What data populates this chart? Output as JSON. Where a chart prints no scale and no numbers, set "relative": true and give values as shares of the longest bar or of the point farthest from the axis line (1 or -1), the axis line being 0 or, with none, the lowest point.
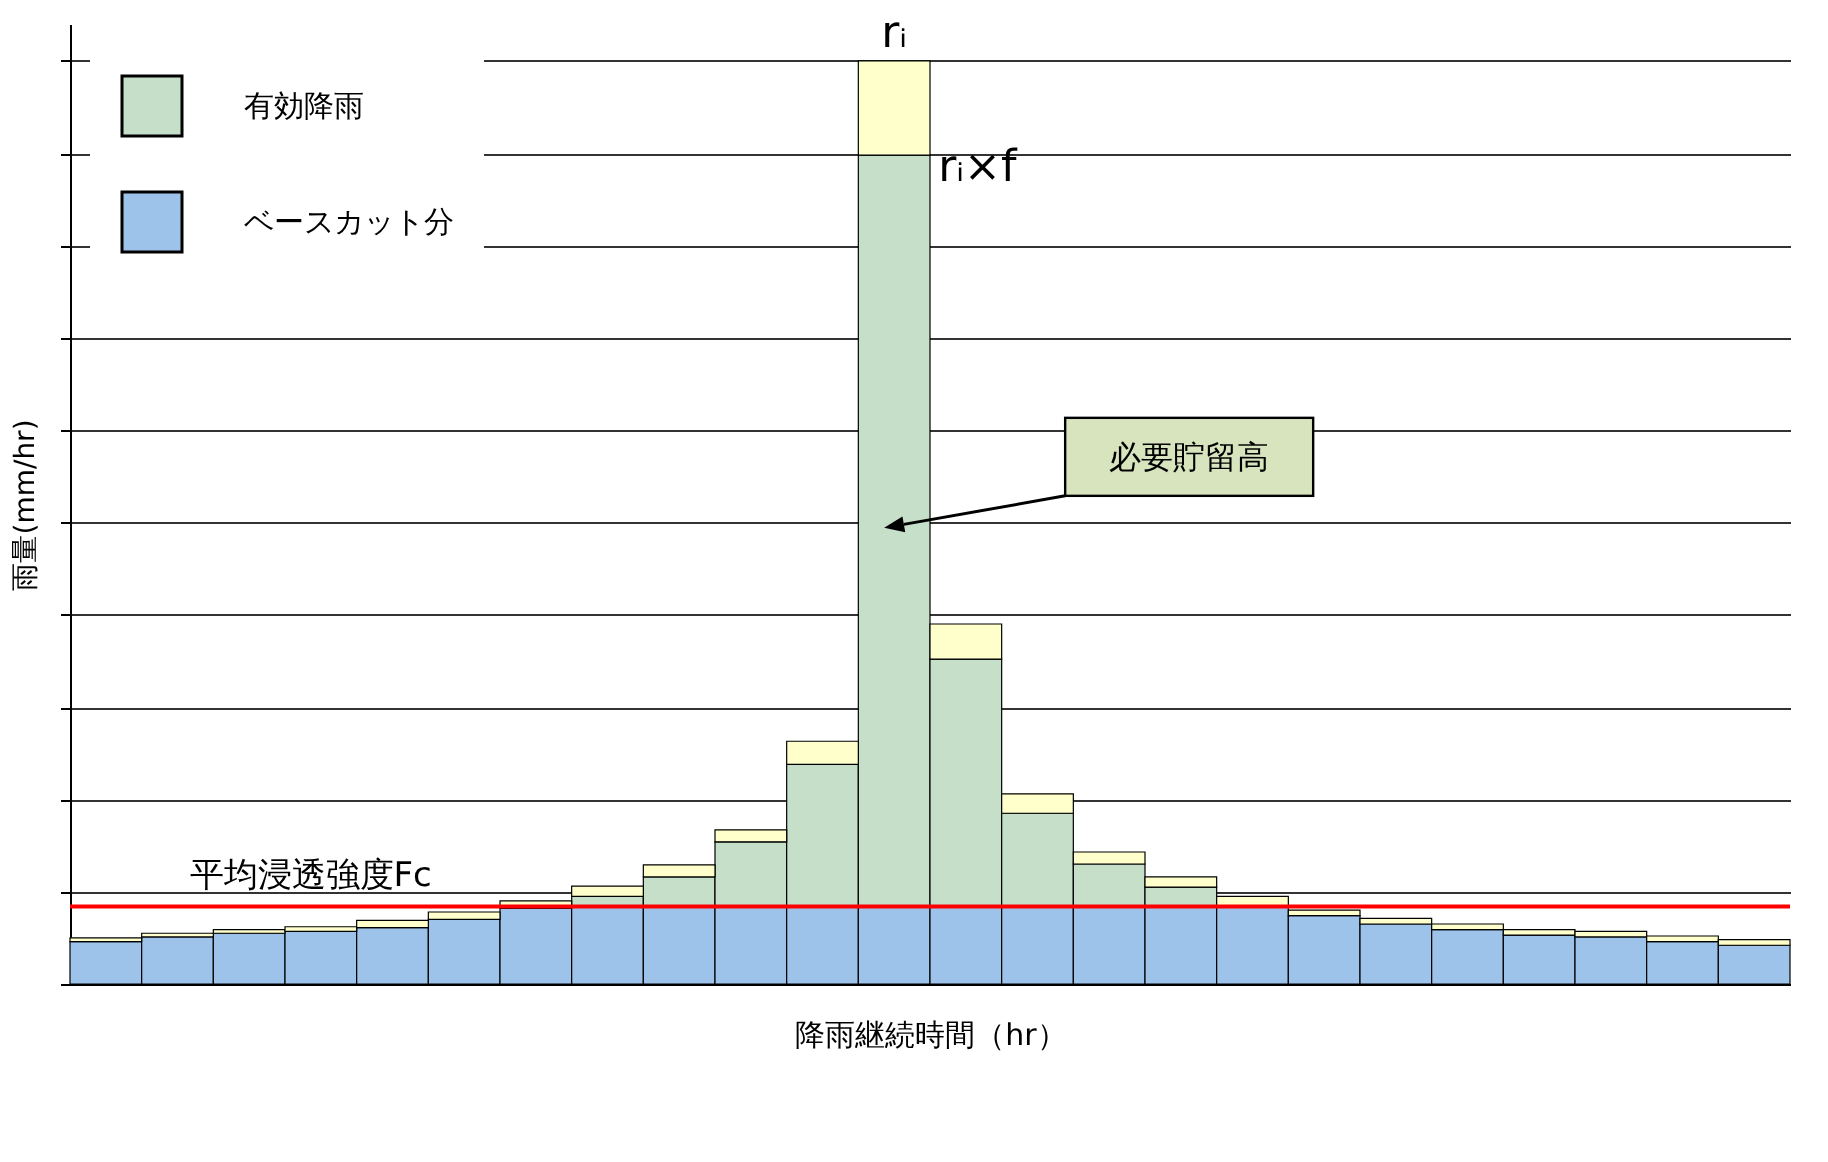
{
  "chart_data": {
    "type": "bar",
    "stacked": true,
    "relative": true,
    "xlabel": "降雨継続時間（hr）",
    "ylabel": "雨量(mm/hr)",
    "categories": [
      null,
      null,
      null,
      null,
      null,
      null,
      null,
      null,
      null,
      null,
      null,
      null,
      null,
      null,
      null,
      null,
      null,
      null,
      null,
      null,
      null,
      null,
      null,
      null
    ],
    "series": [
      {
        "name": "ベースカット分",
        "color": "#9dc3ea",
        "values": [
          0.046,
          0.051,
          0.055,
          0.057,
          0.061,
          0.07,
          0.082,
          0.084,
          0.084,
          0.084,
          0.084,
          0.084,
          0.084,
          0.084,
          0.084,
          0.084,
          0.084,
          0.074,
          0.065,
          0.059,
          0.053,
          0.051,
          0.046,
          0.042
        ]
      },
      {
        "name": "有効降雨",
        "color": "#c5dfc8",
        "values": [
          0,
          0,
          0,
          0,
          0,
          0,
          0,
          0.011,
          0.032,
          0.07,
          0.154,
          0.814,
          0.268,
          0.101,
          0.046,
          0.021,
          0,
          0,
          0,
          0,
          0,
          0,
          0,
          0
        ]
      },
      {
        "color": "#ffffcc",
        "values": [
          0.004,
          0.004,
          0.004,
          0.005,
          0.008,
          0.008,
          0.008,
          0.011,
          0.013,
          0.013,
          0.025,
          0.102,
          0.038,
          0.021,
          0.013,
          0.011,
          0.011,
          0.006,
          0.006,
          0.006,
          0.006,
          0.006,
          0.006,
          0.006
        ]
      }
    ],
    "ref_lines": [
      {
        "axis": "y",
        "value": 0.084,
        "label": "平均浸透強度Fc",
        "color": "#ff0000"
      }
    ],
    "annotations": [
      "rᵢ",
      "rᵢ×f",
      "必要貯留高"
    ],
    "grid": "y",
    "legend": "top left"
  }
}
